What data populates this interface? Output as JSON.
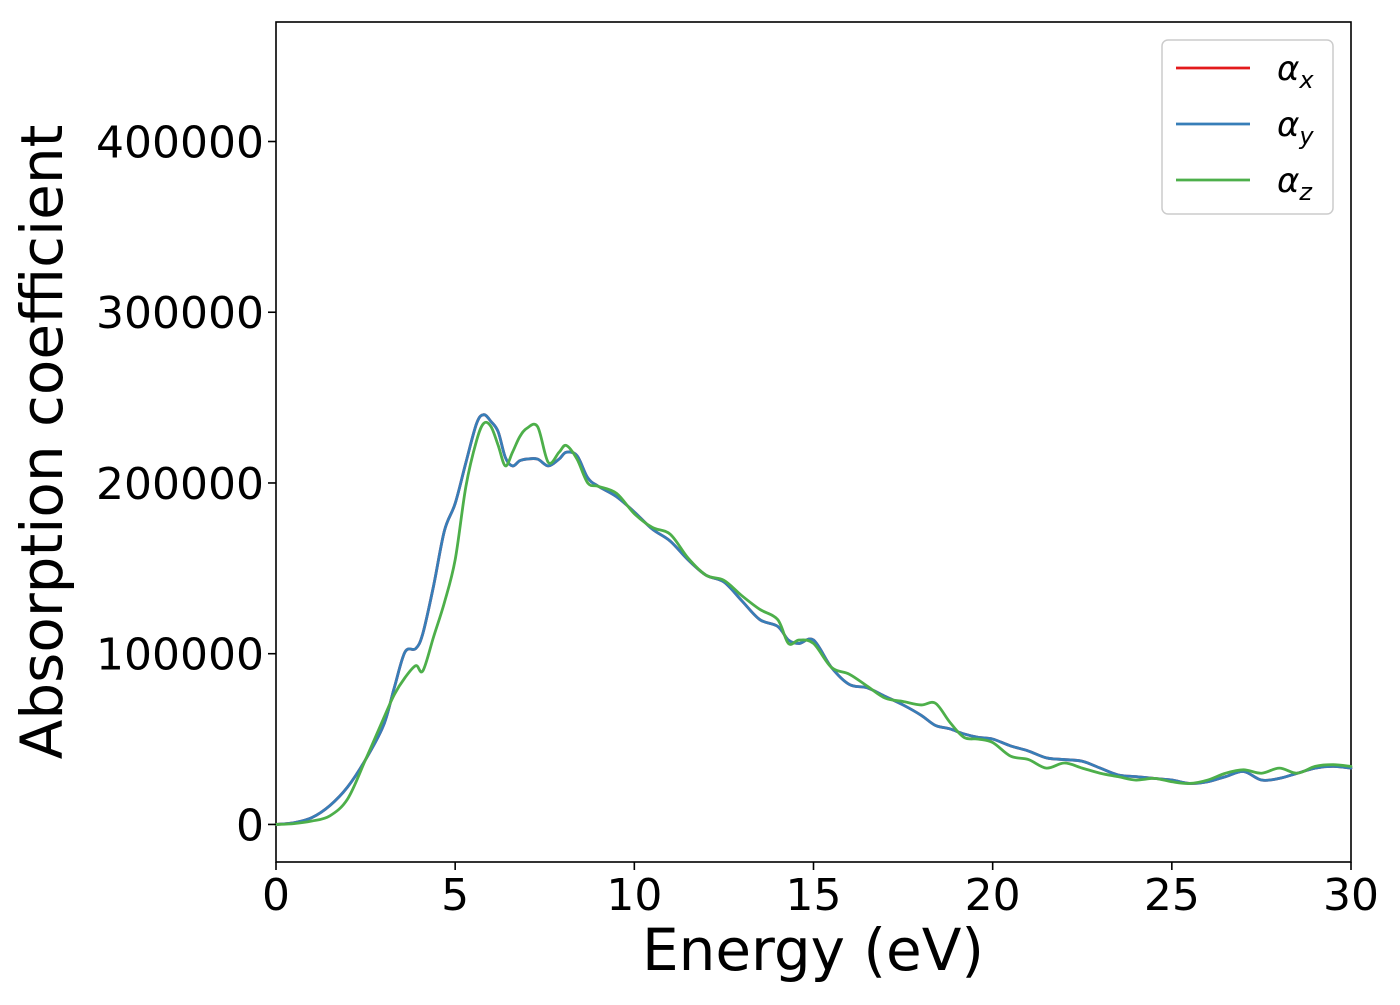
{
  "chart_data": {
    "type": "line",
    "title": "",
    "xlabel": "Energy (eV)",
    "ylabel": "Absorption coefficient",
    "xlim": [
      0,
      30
    ],
    "ylim": [
      -22000,
      470000
    ],
    "x_ticks": [
      0,
      5,
      10,
      15,
      20,
      25,
      30
    ],
    "x_tick_labels": [
      "0",
      "5",
      "10",
      "15",
      "20",
      "25",
      "30"
    ],
    "y_ticks": [
      0,
      100000,
      200000,
      300000,
      400000
    ],
    "y_tick_labels": [
      "0",
      "100000",
      "200000",
      "300000",
      "400000"
    ],
    "grid": false,
    "legend_position": "upper-right",
    "x": [
      0,
      0.5,
      1,
      1.5,
      2,
      2.5,
      3,
      3.3,
      3.6,
      3.9,
      4.1,
      4.4,
      4.7,
      5,
      5.3,
      5.6,
      5.8,
      6.0,
      6.2,
      6.4,
      6.6,
      6.8,
      7.0,
      7.3,
      7.6,
      7.9,
      8.1,
      8.4,
      8.7,
      9,
      9.5,
      10,
      10.5,
      11,
      11.5,
      12,
      12.5,
      13,
      13.5,
      14,
      14.3,
      14.6,
      15,
      15.5,
      16,
      16.5,
      17,
      17.5,
      18,
      18.4,
      18.8,
      19.2,
      19.6,
      20,
      20.5,
      21,
      21.5,
      22,
      22.5,
      23,
      23.5,
      24,
      24.5,
      25,
      25.5,
      26,
      26.5,
      27,
      27.5,
      28,
      28.5,
      29,
      29.5,
      30
    ],
    "series": [
      {
        "name": "α_x",
        "label_base": "α",
        "label_sub": "x",
        "color": "#e31a1c",
        "values": [
          0,
          1000,
          4000,
          11000,
          22000,
          38000,
          58000,
          80000,
          101000,
          103000,
          112000,
          140000,
          172000,
          188000,
          212000,
          235000,
          240000,
          236000,
          230000,
          215000,
          210000,
          213000,
          214000,
          214000,
          210000,
          214000,
          218000,
          216000,
          203000,
          198000,
          192000,
          183000,
          173000,
          166000,
          155000,
          146000,
          142000,
          131000,
          120000,
          116000,
          108000,
          106000,
          108000,
          92000,
          82000,
          80000,
          75000,
          70000,
          64000,
          58000,
          56000,
          53000,
          51000,
          50000,
          46000,
          43000,
          39000,
          38000,
          37000,
          33000,
          29000,
          28000,
          27000,
          26000,
          24000,
          25000,
          28000,
          31000,
          26000,
          27000,
          30000,
          33000,
          34000,
          33000
        ]
      },
      {
        "name": "α_y",
        "label_base": "α",
        "label_sub": "y",
        "color": "#377eb8",
        "values": [
          0,
          1000,
          4000,
          11000,
          22000,
          38000,
          58000,
          80000,
          101000,
          103000,
          112000,
          140000,
          172000,
          188000,
          212000,
          235000,
          240000,
          236000,
          230000,
          215000,
          210000,
          213000,
          214000,
          214000,
          210000,
          214000,
          218000,
          216000,
          203000,
          198000,
          192000,
          183000,
          173000,
          166000,
          155000,
          146000,
          142000,
          131000,
          120000,
          116000,
          108000,
          106000,
          108000,
          92000,
          82000,
          80000,
          75000,
          70000,
          64000,
          58000,
          56000,
          53000,
          51000,
          50000,
          46000,
          43000,
          39000,
          38000,
          37000,
          33000,
          29000,
          28000,
          27000,
          26000,
          24000,
          25000,
          28000,
          31000,
          26000,
          27000,
          30000,
          33000,
          34000,
          33000
        ]
      },
      {
        "name": "α_z",
        "label_base": "α",
        "label_sub": "z",
        "color": "#4daf4a",
        "values": [
          0,
          500,
          2000,
          5000,
          15000,
          38000,
          62000,
          76000,
          86000,
          93000,
          90000,
          110000,
          130000,
          155000,
          198000,
          225000,
          235000,
          233000,
          222000,
          210000,
          218000,
          227000,
          232000,
          233000,
          212000,
          218000,
          222000,
          214000,
          200000,
          198000,
          194000,
          182000,
          174000,
          170000,
          156000,
          146000,
          143000,
          134000,
          126000,
          120000,
          106000,
          108000,
          106000,
          92000,
          88000,
          81000,
          74000,
          72000,
          70000,
          71000,
          60000,
          51000,
          50000,
          48000,
          40000,
          38000,
          33000,
          36000,
          33000,
          30000,
          28000,
          26000,
          27000,
          25000,
          24000,
          26000,
          30000,
          32000,
          30000,
          33000,
          30000,
          34000,
          35000,
          34000
        ]
      }
    ]
  }
}
